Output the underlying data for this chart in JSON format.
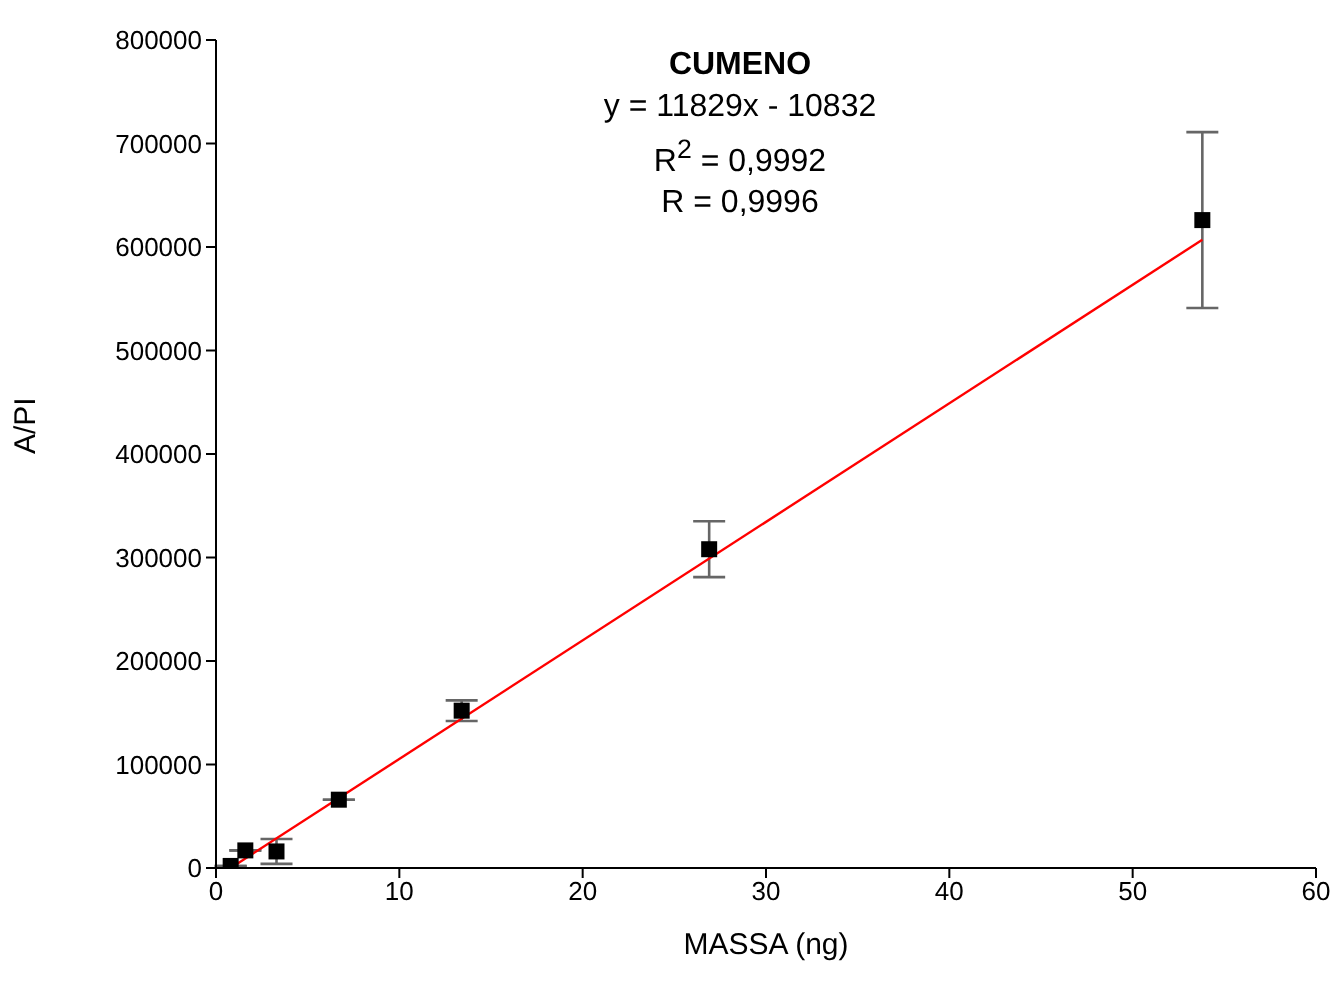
{
  "chart_data": {
    "type": "scatter",
    "title": "CUMENO",
    "annotations": [
      "y = 11829x - 10832",
      "R$^{2}$ = 0,9992",
      "R = 0,9996"
    ],
    "xlabel": "MASSA (ng)",
    "ylabel": "A/PI",
    "xlim": [
      0,
      60
    ],
    "xticks": [
      0,
      10,
      20,
      30,
      40,
      50,
      60
    ],
    "ylim": [
      0,
      800000
    ],
    "yticks": [
      0,
      100000,
      200000,
      300000,
      400000,
      500000,
      600000,
      700000,
      800000
    ],
    "grid": false,
    "marker": "square",
    "series": [
      {
        "color": "#000000",
        "x": [
          0.8,
          1.6,
          3.3,
          6.7,
          13.4,
          26.9,
          53.8
        ],
        "values": [
          2000,
          17000,
          16000,
          66000,
          152000,
          308000,
          626000
        ],
        "errors": [
          null,
          null,
          12000,
          null,
          10000,
          27000,
          85000
        ]
      },
      {
        "type": "line",
        "color": "#ff0000",
        "marker": "none",
        "line_style": "solid",
        "x": [
          0.8,
          53.8
        ],
        "values": [
          0,
          607000
        ]
      }
    ]
  }
}
